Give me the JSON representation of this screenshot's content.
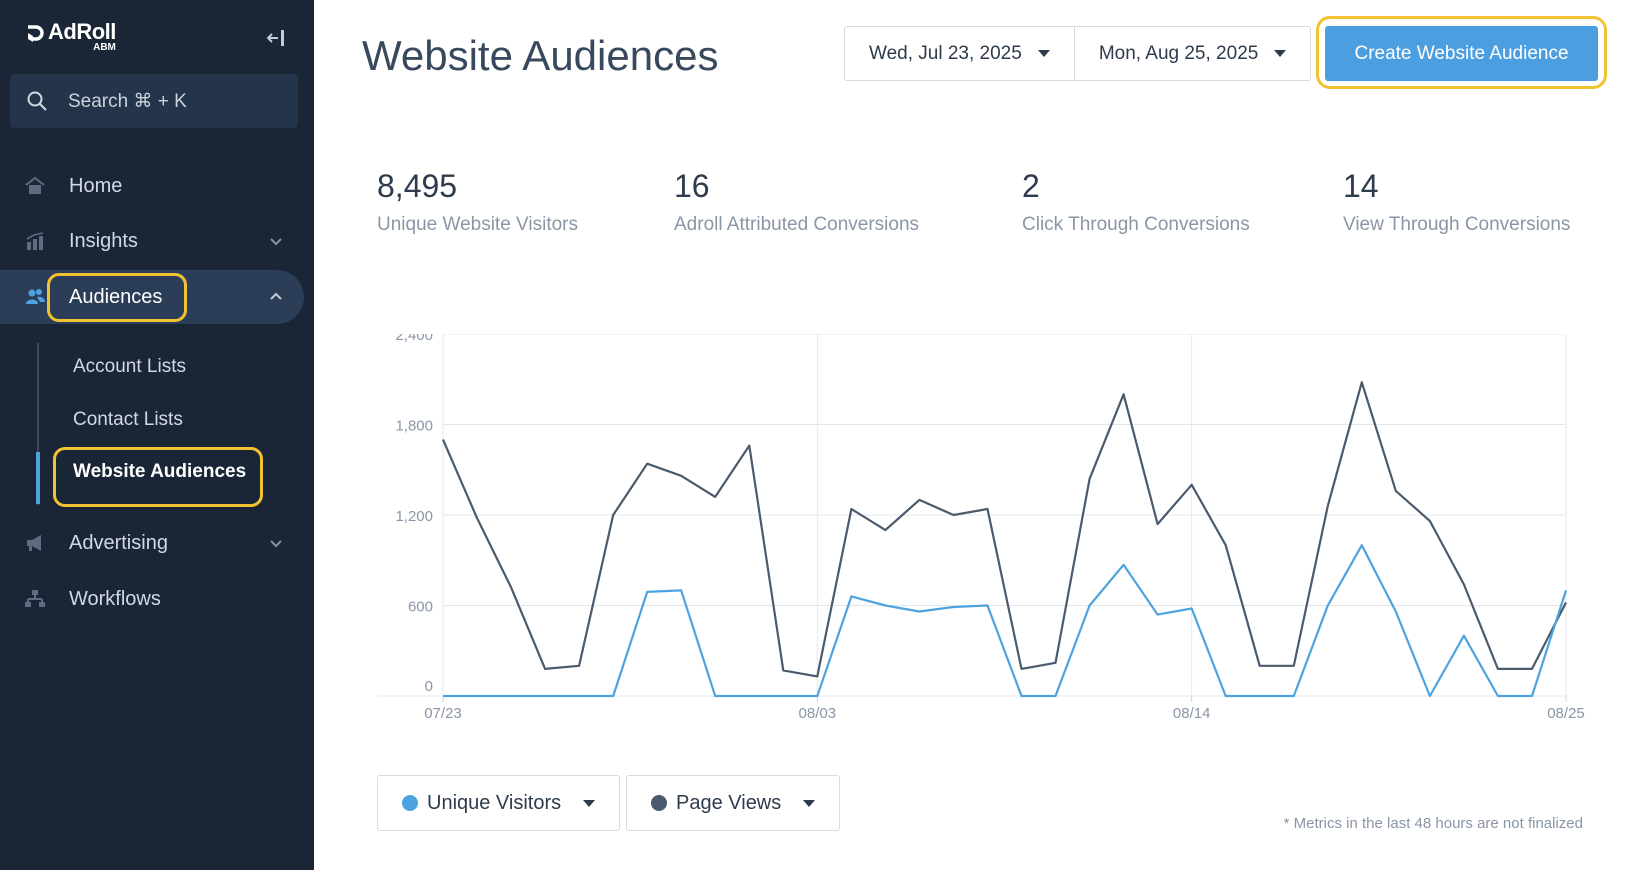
{
  "sidebar": {
    "logo": {
      "name": "AdRoll",
      "sub": "ABM"
    },
    "search": {
      "label": "Search ⌘ + K"
    },
    "items": [
      {
        "label": "Home",
        "icon": "home-icon"
      },
      {
        "label": "Insights",
        "icon": "insights-icon"
      },
      {
        "label": "Audiences",
        "icon": "audiences-icon"
      },
      {
        "label": "Advertising",
        "icon": "megaphone-icon"
      },
      {
        "label": "Workflows",
        "icon": "workflows-icon"
      }
    ],
    "subitems": [
      {
        "label": "Account Lists"
      },
      {
        "label": "Contact Lists"
      },
      {
        "label": "Website Audiences"
      }
    ]
  },
  "header": {
    "title": "Website Audiences",
    "start_date": "Wed, Jul 23, 2025",
    "end_date": "Mon, Aug 25, 2025",
    "create_label": "Create Website Audience"
  },
  "stats": [
    {
      "value": "8,495",
      "label": "Unique Website Visitors"
    },
    {
      "value": "16",
      "label": "Adroll Attributed Conversions"
    },
    {
      "value": "2",
      "label": "Click Through Conversions"
    },
    {
      "value": "14",
      "label": "View Through Conversions"
    }
  ],
  "legend": {
    "unique_visitors": "Unique Visitors",
    "page_views": "Page Views"
  },
  "footnote": "* Metrics in the last 48 hours are not finalized",
  "colors": {
    "sidebar_bg": "#1a2535",
    "accent_blue": "#4b9ee0",
    "unique_visitors": "#4da3e0",
    "page_views": "#4a5b6d",
    "highlight": "#f1c232"
  },
  "chart_data": {
    "type": "line",
    "ylim": [
      0,
      2400
    ],
    "yticks": [
      "0",
      "600",
      "1,200",
      "1,800",
      "2,400"
    ],
    "xtick_labels": [
      "07/23",
      "08/03",
      "08/14",
      "08/25"
    ],
    "xtick_index": [
      0,
      11,
      22,
      33
    ],
    "grid": true,
    "series": [
      {
        "name": "Page Views",
        "color": "#4a5b6d",
        "values": [
          1700,
          1180,
          720,
          180,
          200,
          1200,
          1540,
          1460,
          1320,
          1660,
          170,
          130,
          1240,
          1100,
          1300,
          1200,
          1240,
          180,
          220,
          1440,
          2000,
          1140,
          1400,
          1000,
          200,
          200,
          1260,
          2080,
          1360,
          1160,
          740,
          180,
          180,
          620
        ]
      },
      {
        "name": "Unique Visitors",
        "color": "#4da3e0",
        "values": [
          0,
          0,
          0,
          0,
          0,
          0,
          690,
          700,
          0,
          0,
          0,
          0,
          660,
          600,
          560,
          590,
          600,
          0,
          0,
          600,
          870,
          540,
          580,
          0,
          0,
          0,
          600,
          1000,
          560,
          0,
          400,
          0,
          0,
          700
        ]
      }
    ]
  }
}
